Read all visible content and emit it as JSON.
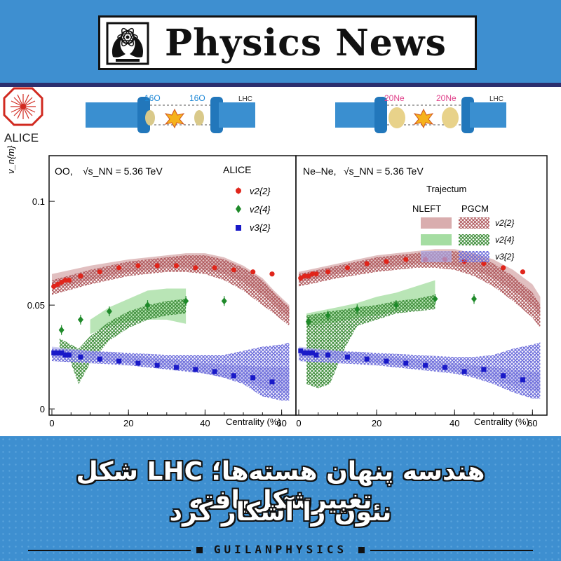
{
  "header": {
    "title": "Physics News"
  },
  "figure": {
    "logo_text": "ALICE",
    "collision_left": {
      "beam_label": "16O",
      "accelerator": "LHC"
    },
    "collision_right": {
      "beam_label": "20Ne",
      "accelerator": "LHC"
    }
  },
  "chart_data": [
    {
      "type": "scatter",
      "panel": "left",
      "system_label": "OO,",
      "energy_label": "√s_NN = 5.36 TeV",
      "experiment": "ALICE",
      "ylabel": "v_n{m}",
      "xlabel": "Centrality (%)",
      "xlim": [
        0,
        63
      ],
      "ylim": [
        -0.003,
        0.122
      ],
      "x_ticks": [
        0,
        20,
        40,
        60
      ],
      "y_ticks": [
        0,
        0.05,
        0.1
      ],
      "y_tick_labels": [
        "0",
        "0.05",
        "0.1"
      ],
      "series": [
        {
          "name": "v2{2}",
          "marker": "circle",
          "color": "#e0251b",
          "x": [
            0.5,
            1.5,
            2.5,
            3.5,
            4.5,
            7.5,
            12.5,
            17.5,
            22.5,
            27.5,
            32.5,
            37.5,
            42.5,
            47.5,
            52.5,
            57.5
          ],
          "y": [
            0.059,
            0.06,
            0.061,
            0.062,
            0.062,
            0.064,
            0.066,
            0.068,
            0.069,
            0.069,
            0.069,
            0.068,
            0.068,
            0.067,
            0.066,
            0.065
          ]
        },
        {
          "name": "v2{4}",
          "marker": "diamond",
          "color": "#1f8a2a",
          "x": [
            2.5,
            7.5,
            15,
            25,
            35,
            45
          ],
          "y": [
            0.038,
            0.043,
            0.047,
            0.05,
            0.052,
            0.052
          ]
        },
        {
          "name": "v3{2}",
          "marker": "square",
          "color": "#1919c8",
          "x": [
            0.5,
            1.5,
            2.5,
            3.5,
            4.5,
            7.5,
            12.5,
            17.5,
            22.5,
            27.5,
            32.5,
            37.5,
            42.5,
            47.5,
            52.5,
            57.5
          ],
          "y": [
            0.027,
            0.027,
            0.027,
            0.026,
            0.026,
            0.025,
            0.024,
            0.023,
            0.022,
            0.021,
            0.02,
            0.019,
            0.018,
            0.016,
            0.015,
            0.013
          ]
        }
      ],
      "bands": [
        {
          "series": "v2{2}",
          "model": "NLEFT",
          "color": "#c98a8c",
          "x": [
            0,
            10,
            20,
            30,
            35,
            40,
            45,
            50,
            55,
            58,
            62
          ],
          "lo": [
            0.058,
            0.062,
            0.066,
            0.068,
            0.068,
            0.067,
            0.065,
            0.061,
            0.055,
            0.05,
            0.044
          ],
          "hi": [
            0.065,
            0.069,
            0.072,
            0.074,
            0.075,
            0.075,
            0.073,
            0.069,
            0.063,
            0.057,
            0.05
          ]
        },
        {
          "series": "v2{2}",
          "model": "PGCM",
          "color": "#b05a5e",
          "x": [
            0,
            10,
            20,
            30,
            35,
            40,
            45,
            50,
            55,
            58,
            62
          ],
          "lo": [
            0.055,
            0.06,
            0.064,
            0.066,
            0.066,
            0.065,
            0.062,
            0.057,
            0.05,
            0.046,
            0.04
          ],
          "hi": [
            0.062,
            0.067,
            0.071,
            0.073,
            0.074,
            0.074,
            0.072,
            0.068,
            0.062,
            0.056,
            0.049
          ]
        },
        {
          "series": "v2{4}",
          "model": "NLEFT",
          "color": "#7fcf7a",
          "x": [
            10,
            15,
            20,
            25,
            30,
            35
          ],
          "lo": [
            0.036,
            0.04,
            0.042,
            0.043,
            0.043,
            0.041
          ],
          "hi": [
            0.043,
            0.049,
            0.053,
            0.057,
            0.058,
            0.058
          ]
        },
        {
          "series": "v2{4}",
          "model": "PGCM",
          "color": "#3e8e3a",
          "x": [
            2,
            5,
            7,
            10,
            15,
            20,
            25,
            30,
            35
          ],
          "lo": [
            0.03,
            0.022,
            0.012,
            0.022,
            0.033,
            0.039,
            0.043,
            0.045,
            0.046
          ],
          "hi": [
            0.034,
            0.031,
            0.029,
            0.035,
            0.042,
            0.047,
            0.05,
            0.052,
            0.053
          ]
        },
        {
          "series": "v3{2}",
          "model": "NLEFT",
          "color": "#a8a8e8",
          "x": [
            0,
            10,
            20,
            30,
            40,
            50,
            55,
            60,
            62
          ],
          "lo": [
            0.025,
            0.024,
            0.022,
            0.02,
            0.017,
            0.013,
            0.01,
            0.008,
            0.007
          ],
          "hi": [
            0.03,
            0.028,
            0.026,
            0.024,
            0.022,
            0.021,
            0.02,
            0.02,
            0.02
          ]
        },
        {
          "series": "v3{2}",
          "model": "PGCM",
          "color": "#6d6ddb",
          "x": [
            0,
            10,
            20,
            30,
            40,
            45,
            50,
            55,
            60,
            62
          ],
          "lo": [
            0.023,
            0.022,
            0.021,
            0.019,
            0.017,
            0.015,
            0.012,
            0.006,
            0.004,
            0.004
          ],
          "hi": [
            0.029,
            0.028,
            0.027,
            0.026,
            0.026,
            0.026,
            0.028,
            0.03,
            0.031,
            0.032
          ]
        }
      ]
    },
    {
      "type": "scatter",
      "panel": "right",
      "system_label": "Ne–Ne,",
      "energy_label": "√s_NN = 5.36 TeV",
      "xlabel": "Centrality (%)",
      "xlim": [
        0,
        63
      ],
      "ylim": [
        -0.003,
        0.122
      ],
      "x_ticks": [
        0,
        20,
        40,
        60
      ],
      "legend": {
        "title": "Trajectum",
        "columns": [
          "NLEFT",
          "PGCM"
        ],
        "rows": [
          "v2{2}",
          "v2{4}",
          "v3{2}"
        ]
      },
      "series": [
        {
          "name": "v2{2}",
          "marker": "circle",
          "color": "#e0251b",
          "x": [
            0.5,
            1.5,
            2.5,
            3.5,
            4.5,
            7.5,
            12.5,
            17.5,
            22.5,
            27.5,
            32.5,
            37.5,
            42.5,
            47.5,
            52.5,
            57.5
          ],
          "y": [
            0.063,
            0.064,
            0.064,
            0.065,
            0.065,
            0.066,
            0.068,
            0.07,
            0.071,
            0.072,
            0.072,
            0.072,
            0.071,
            0.07,
            0.068,
            0.066
          ]
        },
        {
          "name": "v2{4}",
          "marker": "diamond",
          "color": "#1f8a2a",
          "x": [
            2.5,
            7.5,
            15,
            25,
            35,
            45
          ],
          "y": [
            0.042,
            0.045,
            0.048,
            0.05,
            0.053,
            0.053
          ]
        },
        {
          "name": "v3{2}",
          "marker": "square",
          "color": "#1919c8",
          "x": [
            0.5,
            1.5,
            2.5,
            3.5,
            4.5,
            7.5,
            12.5,
            17.5,
            22.5,
            27.5,
            32.5,
            37.5,
            42.5,
            47.5,
            52.5,
            57.5
          ],
          "y": [
            0.028,
            0.027,
            0.027,
            0.027,
            0.026,
            0.026,
            0.025,
            0.024,
            0.023,
            0.022,
            0.021,
            0.02,
            0.018,
            0.019,
            0.016,
            0.014
          ]
        }
      ],
      "bands": [
        {
          "series": "v2{2}",
          "model": "NLEFT",
          "color": "#c98a8c",
          "x": [
            0,
            10,
            20,
            30,
            35,
            40,
            45,
            50,
            55,
            60,
            62
          ],
          "lo": [
            0.061,
            0.065,
            0.068,
            0.07,
            0.07,
            0.069,
            0.067,
            0.063,
            0.057,
            0.05,
            0.045
          ],
          "hi": [
            0.066,
            0.07,
            0.074,
            0.076,
            0.077,
            0.077,
            0.075,
            0.072,
            0.067,
            0.06,
            0.054
          ]
        },
        {
          "series": "v2{2}",
          "model": "PGCM",
          "color": "#b05a5e",
          "x": [
            0,
            10,
            20,
            30,
            35,
            40,
            45,
            50,
            55,
            60,
            62
          ],
          "lo": [
            0.059,
            0.063,
            0.066,
            0.068,
            0.068,
            0.067,
            0.064,
            0.059,
            0.052,
            0.044,
            0.039
          ],
          "hi": [
            0.065,
            0.069,
            0.073,
            0.075,
            0.076,
            0.076,
            0.074,
            0.07,
            0.064,
            0.056,
            0.05
          ]
        },
        {
          "series": "v2{4}",
          "model": "NLEFT",
          "color": "#7fcf7a",
          "x": [
            2,
            10,
            15,
            20,
            25,
            30,
            35
          ],
          "lo": [
            0.04,
            0.042,
            0.044,
            0.045,
            0.047,
            0.048,
            0.049
          ],
          "hi": [
            0.046,
            0.049,
            0.051,
            0.054,
            0.056,
            0.059,
            0.062
          ]
        },
        {
          "series": "v2{4}",
          "model": "PGCM",
          "color": "#3e8e3a",
          "x": [
            2,
            5,
            8,
            12,
            15,
            20,
            25,
            30,
            35
          ],
          "lo": [
            0.012,
            0.01,
            0.012,
            0.03,
            0.04,
            0.043,
            0.046,
            0.047,
            0.048
          ],
          "hi": [
            0.045,
            0.046,
            0.047,
            0.048,
            0.049,
            0.05,
            0.052,
            0.053,
            0.055
          ]
        },
        {
          "series": "v3{2}",
          "model": "NLEFT",
          "color": "#a8a8e8",
          "x": [
            0,
            10,
            20,
            30,
            40,
            50,
            55,
            60,
            62
          ],
          "lo": [
            0.025,
            0.024,
            0.022,
            0.02,
            0.018,
            0.014,
            0.011,
            0.009,
            0.008
          ],
          "hi": [
            0.03,
            0.028,
            0.026,
            0.024,
            0.022,
            0.02,
            0.019,
            0.018,
            0.018
          ]
        },
        {
          "series": "v3{2}",
          "model": "PGCM",
          "color": "#6d6ddb",
          "x": [
            0,
            10,
            20,
            30,
            40,
            45,
            50,
            55,
            60,
            62
          ],
          "lo": [
            0.023,
            0.022,
            0.021,
            0.019,
            0.017,
            0.015,
            0.012,
            0.008,
            0.005,
            0.005
          ],
          "hi": [
            0.029,
            0.028,
            0.027,
            0.026,
            0.025,
            0.025,
            0.026,
            0.029,
            0.031,
            0.032
          ]
        }
      ]
    }
  ],
  "footer": {
    "headline_line1": "هندسه پنهان هسته‌ها؛ LHC شکل تغییرشکل‌یافته",
    "headline_line2": "نئون را آشکار کرد",
    "brand": "GUILANPHYSICS"
  }
}
